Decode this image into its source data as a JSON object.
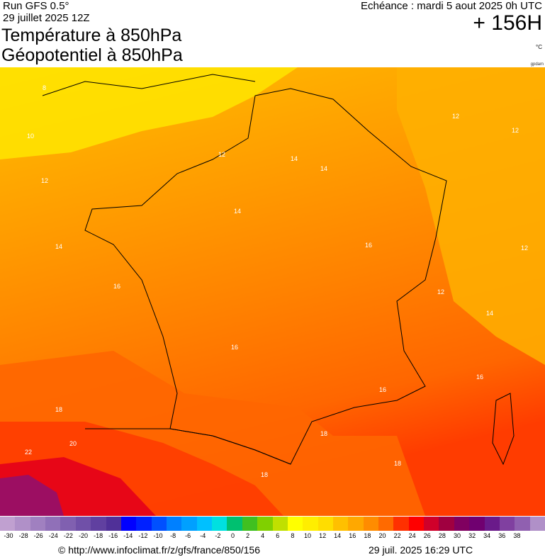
{
  "header": {
    "run": "Run GFS 0.5°",
    "run_date": "29 juillet 2025 12Z",
    "title_line1": "Température à 850hPa",
    "title_line2": "Géopotentiel à 850hPa",
    "echeance": "Echéance : mardi 5 aout 2025 0h UTC",
    "hour": "+ 156H",
    "unit": "°C",
    "credit": "gpdam"
  },
  "map": {
    "region": "france",
    "contour_labels": [
      "8",
      "10",
      "12",
      "12",
      "14",
      "14",
      "12",
      "12",
      "12",
      "14",
      "16",
      "16",
      "16",
      "16",
      "18",
      "18",
      "18",
      "18",
      "20",
      "22",
      "12",
      "14",
      "16",
      "14"
    ],
    "colors": {
      "c8": "#ffe200",
      "c10": "#ffcc00",
      "c12": "#ffb000",
      "c14": "#ff9c00",
      "c16": "#ff8200",
      "c18": "#ff6600",
      "c20": "#ff3c00",
      "c22": "#e4001a",
      "c24": "#c2004a",
      "c26": "#93106a",
      "sea_edge": "#ffa000"
    }
  },
  "scale": {
    "values": [
      -30,
      -28,
      -26,
      -24,
      -22,
      -20,
      -18,
      -16,
      -14,
      -12,
      -10,
      -8,
      -6,
      -4,
      -2,
      0,
      2,
      4,
      6,
      8,
      10,
      12,
      14,
      16,
      18,
      20,
      22,
      24,
      26,
      28,
      30,
      32,
      34,
      36,
      38
    ],
    "colors": [
      "#c0a0d0",
      "#b090c8",
      "#a080c0",
      "#9070b8",
      "#8060b0",
      "#7050a8",
      "#6040a0",
      "#503098",
      "#0000ff",
      "#0020ff",
      "#0050ff",
      "#0080ff",
      "#00a0ff",
      "#00c0ff",
      "#00e0e0",
      "#00c070",
      "#40c020",
      "#80d000",
      "#c0e000",
      "#ffff00",
      "#ffee00",
      "#ffdd00",
      "#ffc000",
      "#ffa800",
      "#ff8c00",
      "#ff6a00",
      "#ff3000",
      "#ff0000",
      "#d0002a",
      "#a00040",
      "#800060",
      "#700070",
      "#6a1a8a",
      "#8040a0",
      "#9060b0",
      "#b090c8"
    ]
  },
  "footer": {
    "url": "© http://www.infoclimat.fr/z/gfs/france/850/156",
    "timestamp": "29 juil. 2025 16:29 UTC"
  }
}
